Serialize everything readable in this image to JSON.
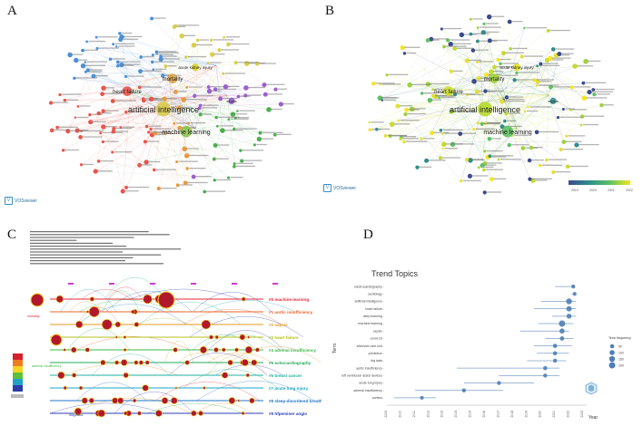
{
  "panels": {
    "a_letter": "A",
    "b_letter": "B",
    "c_letter": "C",
    "d_letter": "D"
  },
  "network": {
    "main_terms": [
      "artificial intelligence",
      "machine learning",
      "heart failure",
      "mortality",
      "acute kidney injury",
      "sepsis"
    ],
    "vos_label": "VOSviewer"
  },
  "overlay": {
    "legend_ticks": [
      "2019",
      "2020",
      "2021",
      "2022"
    ],
    "legend_colors": [
      "#3b4a8c",
      "#2f8d8c",
      "#5dc163",
      "#f5e51f"
    ],
    "vos_label": "VOSviewer"
  },
  "timeline": {
    "clusters": [
      {
        "label": "#0 machine learning",
        "color": "#e0283a"
      },
      {
        "label": "#1 aortic insufficiency",
        "color": "#e7642a"
      },
      {
        "label": "#2 sepsis",
        "color": "#e59a20"
      },
      {
        "label": "#3 heart failure",
        "color": "#b4c21d"
      },
      {
        "label": "#4 adrenal insufficiency",
        "color": "#3bb84a"
      },
      {
        "label": "#5 echocardiography",
        "color": "#23a85b"
      },
      {
        "label": "#6 breast cancer",
        "color": "#1fb0a0"
      },
      {
        "label": "#7 acute lung injury",
        "color": "#1aa7c8"
      },
      {
        "label": "#8 sleep-disordered breathing",
        "color": "#1f74c8"
      },
      {
        "label": "#9 hfpeminer angio",
        "color": "#2a3fb5"
      }
    ],
    "node_labels": [
      "mortality",
      "adrenal insufficiency",
      "diagnosis"
    ],
    "legend_colors": [
      "#d4202a",
      "#ef7d20",
      "#f3d423",
      "#5cbf3d",
      "#23a2c9",
      "#2b3ea6"
    ]
  },
  "trend_chart": {
    "title": "Trend Topics",
    "ylabel": "Term",
    "xlabel": "Year",
    "legend_title": "Term frequency",
    "x_ticks": [
      "2009",
      "2010",
      "2011",
      "2012",
      "2013",
      "2014",
      "2015",
      "2016",
      "2017",
      "2018",
      "2019",
      "2020",
      "2021",
      "2022",
      "2023"
    ],
    "xlim": [
      2009,
      2023
    ]
  },
  "chart_data": {
    "type": "scatter",
    "title": "Trend Topics",
    "xlabel": "Year",
    "ylabel": "Term",
    "x_ticks": [
      "2009",
      "2010",
      "2011",
      "2012",
      "2013",
      "2014",
      "2015",
      "2016",
      "2017",
      "2018",
      "2019",
      "2020",
      "2021",
      "2022",
      "2023"
    ],
    "xlim": [
      2009,
      2023
    ],
    "legend": {
      "title": "Term frequency",
      "sizes": [
        50,
        100,
        150,
        200
      ]
    },
    "terms": [
      {
        "name": "electrocardiography",
        "start": 2021,
        "median": 2022.3,
        "end": 2022.4,
        "freq": 40
      },
      {
        "name": "cardiology",
        "start": 2022.2,
        "median": 2022.4,
        "end": 2022.5,
        "freq": 35
      },
      {
        "name": "artificial intelligence",
        "start": 2020,
        "median": 2022,
        "end": 2022.5,
        "freq": 150
      },
      {
        "name": "heart failure",
        "start": 2019.5,
        "median": 2022,
        "end": 2022.5,
        "freq": 120
      },
      {
        "name": "deep learning",
        "start": 2020.8,
        "median": 2022,
        "end": 2022.5,
        "freq": 90
      },
      {
        "name": "machine learning",
        "start": 2019.8,
        "median": 2021.5,
        "end": 2022.3,
        "freq": 200
      },
      {
        "name": "sepsis",
        "start": 2018.5,
        "median": 2021.5,
        "end": 2022,
        "freq": 100
      },
      {
        "name": "covid-19",
        "start": 2020.3,
        "median": 2021.5,
        "end": 2022.3,
        "freq": 60
      },
      {
        "name": "intensive care unit",
        "start": 2019.5,
        "median": 2021,
        "end": 2022.2,
        "freq": 55
      },
      {
        "name": "prediction",
        "start": 2019.7,
        "median": 2021,
        "end": 2022,
        "freq": 50
      },
      {
        "name": "big data",
        "start": 2019,
        "median": 2021,
        "end": 2021.8,
        "freq": 45
      },
      {
        "name": "aortic insufficiency",
        "start": 2014,
        "median": 2020.3,
        "end": 2021.3,
        "freq": 50
      },
      {
        "name": "left ventricular assist devices",
        "start": 2017,
        "median": 2020.3,
        "end": 2021.3,
        "freq": 45
      },
      {
        "name": "acute lung injury",
        "start": 2014.5,
        "median": 2017,
        "end": 2019.5,
        "freq": 40
      },
      {
        "name": "adrenal insufficiency",
        "start": 2011,
        "median": 2014.5,
        "end": 2017.3,
        "freq": 45
      },
      {
        "name": "cortisol",
        "start": 2009.5,
        "median": 2011.5,
        "end": 2012.5,
        "freq": 30
      }
    ]
  }
}
